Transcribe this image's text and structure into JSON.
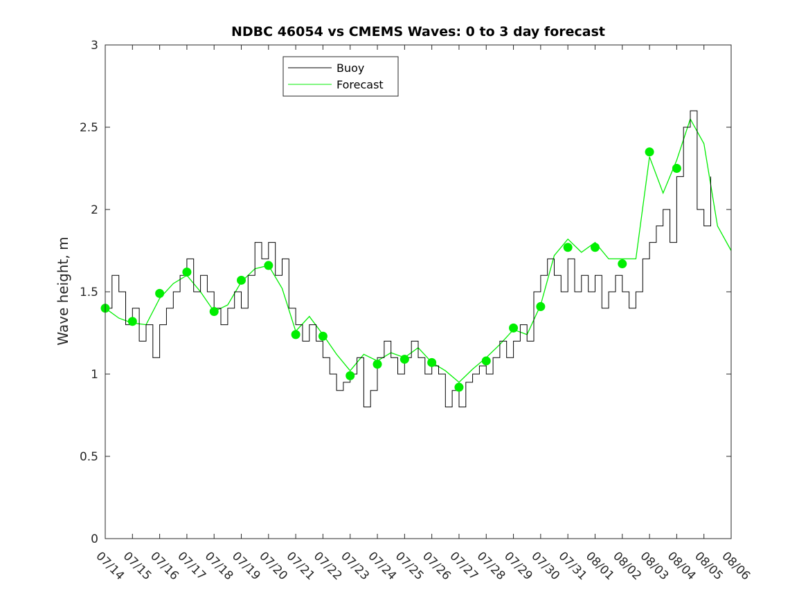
{
  "chart_data": {
    "type": "line",
    "title": "NDBC 46054 vs CMEMS Waves: 0 to 3 day forecast",
    "xlabel": "",
    "ylabel": "Wave height, m",
    "xlim": [
      "07/14",
      "08/06"
    ],
    "ylim": [
      0,
      3
    ],
    "y_ticks": [
      0,
      0.5,
      1,
      1.5,
      2,
      2.5,
      3
    ],
    "y_tick_labels": [
      "0",
      "0.5",
      "1",
      "1.5",
      "2",
      "2.5",
      "3"
    ],
    "x_tick_labels": [
      "07/14",
      "07/15",
      "07/16",
      "07/17",
      "07/18",
      "07/19",
      "07/20",
      "07/21",
      "07/22",
      "07/23",
      "07/24",
      "07/25",
      "07/26",
      "07/27",
      "07/28",
      "07/29",
      "07/30",
      "07/31",
      "08/01",
      "08/02",
      "08/03",
      "08/04",
      "08/05",
      "08/06"
    ],
    "grid": false,
    "legend": {
      "position": "top",
      "entries": [
        "Buoy",
        "Forecast"
      ]
    },
    "colors": {
      "buoy": "#000000",
      "forecast": "#00ee00",
      "markers": "#00ee00"
    },
    "series": [
      {
        "name": "Buoy",
        "style": "step-line",
        "x": [
          "07/14 00:00",
          "07/14 06:00",
          "07/14 12:00",
          "07/14 18:00",
          "07/15 00:00",
          "07/15 06:00",
          "07/15 12:00",
          "07/15 18:00",
          "07/16 00:00",
          "07/16 06:00",
          "07/16 12:00",
          "07/16 18:00",
          "07/17 00:00",
          "07/17 06:00",
          "07/17 12:00",
          "07/17 18:00",
          "07/18 00:00",
          "07/18 06:00",
          "07/18 12:00",
          "07/18 18:00",
          "07/19 00:00",
          "07/19 06:00",
          "07/19 12:00",
          "07/19 18:00",
          "07/20 00:00",
          "07/20 06:00",
          "07/20 12:00",
          "07/20 18:00",
          "07/21 00:00",
          "07/21 06:00",
          "07/21 12:00",
          "07/21 18:00",
          "07/22 00:00",
          "07/22 06:00",
          "07/22 12:00",
          "07/22 18:00",
          "07/23 00:00",
          "07/23 06:00",
          "07/23 12:00",
          "07/23 18:00",
          "07/24 00:00",
          "07/24 06:00",
          "07/24 12:00",
          "07/24 18:00",
          "07/25 00:00",
          "07/25 06:00",
          "07/25 12:00",
          "07/25 18:00",
          "07/26 00:00",
          "07/26 06:00",
          "07/26 12:00",
          "07/26 18:00",
          "07/27 00:00",
          "07/27 06:00",
          "07/27 12:00",
          "07/27 18:00",
          "07/28 00:00",
          "07/28 06:00",
          "07/28 12:00",
          "07/28 18:00",
          "07/29 00:00",
          "07/29 06:00",
          "07/29 12:00",
          "07/29 18:00",
          "07/30 00:00",
          "07/30 06:00",
          "07/30 12:00",
          "07/30 18:00",
          "07/31 00:00",
          "07/31 06:00",
          "07/31 12:00",
          "07/31 18:00",
          "08/01 00:00",
          "08/01 06:00",
          "08/01 12:00",
          "08/01 18:00",
          "08/02 00:00",
          "08/02 06:00",
          "08/02 12:00",
          "08/02 18:00",
          "08/03 00:00",
          "08/03 06:00",
          "08/03 12:00",
          "08/03 18:00",
          "08/04 00:00",
          "08/04 06:00",
          "08/04 12:00",
          "08/04 18:00",
          "08/05 00:00",
          "08/05 06:00"
        ],
        "values": [
          1.4,
          1.6,
          1.5,
          1.3,
          1.4,
          1.2,
          1.3,
          1.1,
          1.3,
          1.4,
          1.5,
          1.6,
          1.7,
          1.5,
          1.6,
          1.5,
          1.4,
          1.3,
          1.4,
          1.5,
          1.4,
          1.6,
          1.8,
          1.7,
          1.8,
          1.6,
          1.7,
          1.4,
          1.3,
          1.2,
          1.3,
          1.2,
          1.1,
          1.0,
          0.9,
          0.95,
          1.0,
          1.1,
          0.8,
          0.9,
          1.1,
          1.2,
          1.1,
          1.0,
          1.1,
          1.2,
          1.1,
          1.0,
          1.05,
          1.0,
          0.8,
          0.9,
          0.8,
          0.95,
          1.0,
          1.05,
          1.0,
          1.1,
          1.2,
          1.1,
          1.2,
          1.3,
          1.2,
          1.5,
          1.6,
          1.7,
          1.6,
          1.5,
          1.7,
          1.5,
          1.6,
          1.5,
          1.6,
          1.4,
          1.5,
          1.6,
          1.5,
          1.4,
          1.5,
          1.7,
          1.8,
          1.9,
          2.0,
          1.8,
          2.2,
          2.5,
          2.6,
          2.0,
          1.9,
          2.2
        ]
      },
      {
        "name": "Forecast",
        "style": "line",
        "x": [
          "07/14 00:00",
          "07/14 12:00",
          "07/15 00:00",
          "07/15 12:00",
          "07/16 00:00",
          "07/16 12:00",
          "07/17 00:00",
          "07/17 12:00",
          "07/18 00:00",
          "07/18 12:00",
          "07/19 00:00",
          "07/19 12:00",
          "07/20 00:00",
          "07/20 12:00",
          "07/21 00:00",
          "07/21 12:00",
          "07/22 00:00",
          "07/22 12:00",
          "07/23 00:00",
          "07/23 12:00",
          "07/24 00:00",
          "07/24 12:00",
          "07/25 00:00",
          "07/25 12:00",
          "07/26 00:00",
          "07/26 12:00",
          "07/27 00:00",
          "07/27 12:00",
          "07/28 00:00",
          "07/28 12:00",
          "07/29 00:00",
          "07/29 12:00",
          "07/30 00:00",
          "07/30 12:00",
          "07/31 00:00",
          "07/31 12:00",
          "08/01 00:00",
          "08/01 12:00",
          "08/02 00:00",
          "08/02 12:00",
          "08/03 00:00",
          "08/03 12:00",
          "08/04 00:00",
          "08/04 12:00",
          "08/05 00:00",
          "08/05 12:00",
          "08/06 00:00"
        ],
        "values": [
          1.4,
          1.34,
          1.31,
          1.3,
          1.46,
          1.55,
          1.6,
          1.5,
          1.38,
          1.42,
          1.56,
          1.64,
          1.66,
          1.52,
          1.26,
          1.35,
          1.24,
          1.12,
          1.02,
          1.12,
          1.08,
          1.13,
          1.1,
          1.16,
          1.07,
          1.02,
          0.95,
          1.03,
          1.1,
          1.18,
          1.27,
          1.24,
          1.42,
          1.72,
          1.82,
          1.74,
          1.8,
          1.7,
          1.7,
          1.7,
          2.32,
          2.1,
          2.3,
          2.55,
          2.4,
          1.9,
          1.75
        ]
      }
    ],
    "daily_markers": {
      "x": [
        "07/14",
        "07/15",
        "07/16",
        "07/17",
        "07/18",
        "07/19",
        "07/20",
        "07/21",
        "07/22",
        "07/23",
        "07/24",
        "07/25",
        "07/26",
        "07/27",
        "07/28",
        "07/29",
        "07/30",
        "07/31",
        "08/01",
        "08/02",
        "08/03",
        "08/04"
      ],
      "values": [
        1.4,
        1.32,
        1.49,
        1.62,
        1.38,
        1.57,
        1.66,
        1.24,
        1.23,
        0.99,
        1.06,
        1.09,
        1.07,
        0.92,
        1.08,
        1.28,
        1.41,
        1.77,
        1.77,
        1.67,
        2.35,
        2.25
      ]
    }
  }
}
